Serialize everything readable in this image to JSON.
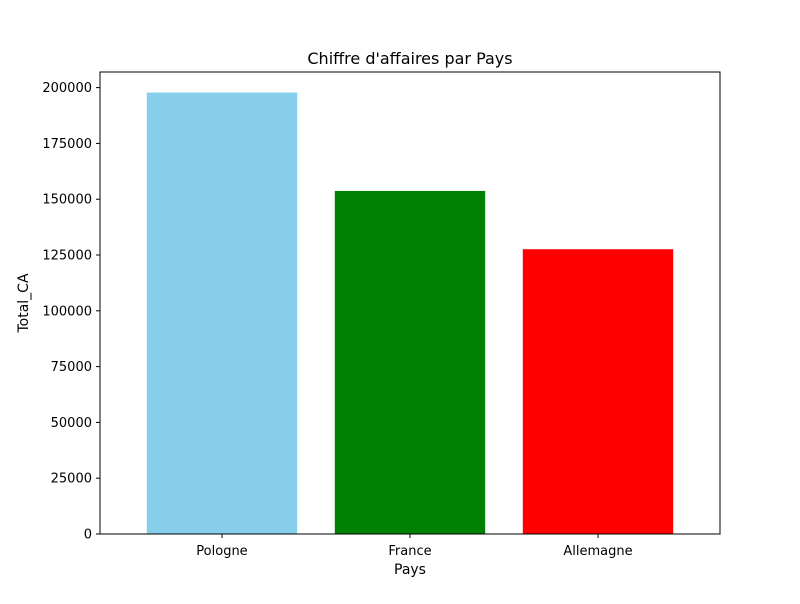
{
  "chart_data": {
    "type": "bar",
    "title": "Chiffre d'affaires par Pays",
    "xlabel": "Pays",
    "ylabel": "Total_CA",
    "categories": [
      "Pologne",
      "France",
      "Allemagne"
    ],
    "values": [
      197800,
      153700,
      127600
    ],
    "colors": [
      "#87ceeb",
      "#008000",
      "#ff0000"
    ],
    "ylim": [
      0,
      207000
    ],
    "yticks": [
      0,
      25000,
      50000,
      75000,
      100000,
      125000,
      150000,
      175000,
      200000
    ],
    "grid": false,
    "legend": "none"
  }
}
